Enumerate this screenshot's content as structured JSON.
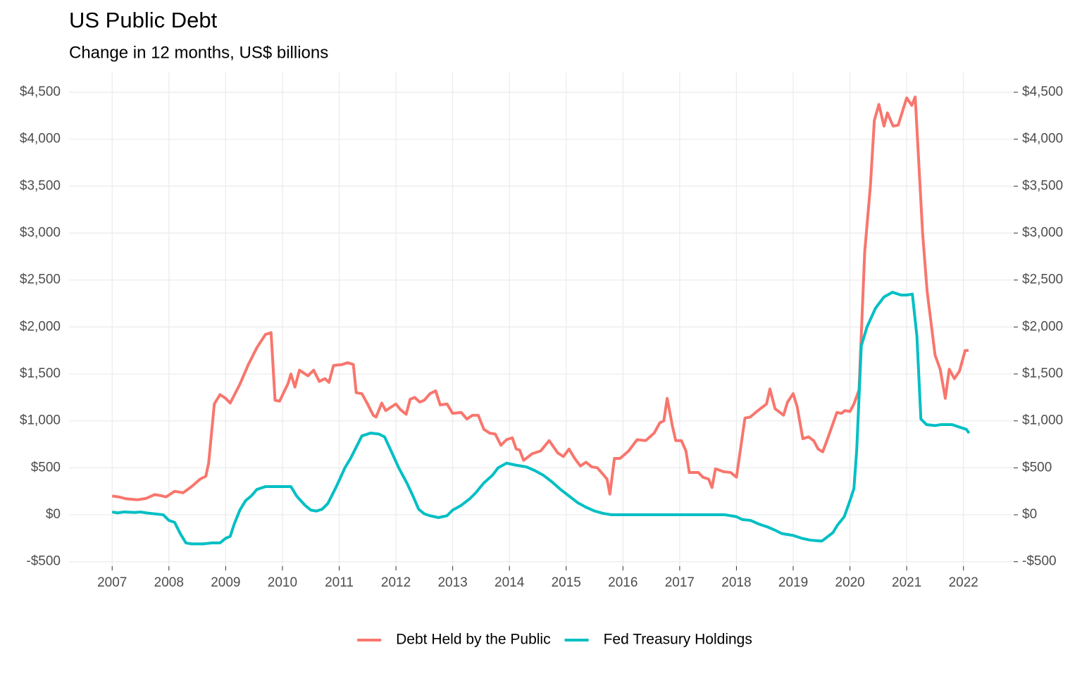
{
  "chart_data": {
    "type": "line",
    "title": "US Public Debt",
    "subtitle": "Change in 12 months, US$ billions",
    "xlim": [
      2006.24,
      2022.86
    ],
    "xticks": [
      2007,
      2008,
      2009,
      2010,
      2011,
      2012,
      2013,
      2014,
      2015,
      2016,
      2017,
      2018,
      2019,
      2020,
      2021,
      2022
    ],
    "ylim": [
      -607,
      4710
    ],
    "yticks": [
      {
        "value": -500,
        "label": "-$500"
      },
      {
        "value": 0,
        "label": "$0"
      },
      {
        "value": 500,
        "label": "$500"
      },
      {
        "value": 1000,
        "label": "$1,000"
      },
      {
        "value": 1500,
        "label": "$1,500"
      },
      {
        "value": 2000,
        "label": "$2,000"
      },
      {
        "value": 2500,
        "label": "$2,500"
      },
      {
        "value": 3000,
        "label": "$3,000"
      },
      {
        "value": 3500,
        "label": "$3,500"
      },
      {
        "value": 4000,
        "label": "$4,000"
      },
      {
        "value": 4500,
        "label": "$4,500"
      }
    ],
    "y2lim": [
      -607,
      4710
    ],
    "y2ticks": [
      {
        "value": -500,
        "label": "-$500"
      },
      {
        "value": 0,
        "label": "$0"
      },
      {
        "value": 500,
        "label": "$500"
      },
      {
        "value": 1000,
        "label": "$1,000"
      },
      {
        "value": 1500,
        "label": "$1,500"
      },
      {
        "value": 2000,
        "label": "$2,000"
      },
      {
        "value": 2500,
        "label": "$2,500"
      },
      {
        "value": 3000,
        "label": "$3,000"
      },
      {
        "value": 3500,
        "label": "$3,500"
      },
      {
        "value": 4000,
        "label": "$4,000"
      },
      {
        "value": 4500,
        "label": "$4,500"
      }
    ],
    "grid": true,
    "legend": "bottom",
    "series": [
      {
        "name": "Debt Held by the Public",
        "color": "#F8766D",
        "x": [
          2007.0,
          2007.12,
          2007.25,
          2007.45,
          2007.6,
          2007.75,
          2007.85,
          2007.95,
          2008.1,
          2008.25,
          2008.4,
          2008.55,
          2008.65,
          2008.7,
          2008.8,
          2008.9,
          2009.0,
          2009.08,
          2009.25,
          2009.4,
          2009.55,
          2009.7,
          2009.8,
          2009.87,
          2009.95,
          2010.1,
          2010.15,
          2010.22,
          2010.3,
          2010.45,
          2010.55,
          2010.65,
          2010.75,
          2010.82,
          2010.9,
          2011.05,
          2011.15,
          2011.25,
          2011.3,
          2011.4,
          2011.5,
          2011.6,
          2011.65,
          2011.75,
          2011.82,
          2012.0,
          2012.08,
          2012.18,
          2012.25,
          2012.33,
          2012.42,
          2012.5,
          2012.6,
          2012.7,
          2012.78,
          2012.9,
          2013.0,
          2013.15,
          2013.25,
          2013.35,
          2013.45,
          2013.55,
          2013.65,
          2013.75,
          2013.85,
          2013.95,
          2014.05,
          2014.12,
          2014.18,
          2014.25,
          2014.4,
          2014.55,
          2014.7,
          2014.85,
          2014.95,
          2015.05,
          2015.15,
          2015.25,
          2015.35,
          2015.45,
          2015.55,
          2015.65,
          2015.72,
          2015.77,
          2015.85,
          2015.95,
          2016.1,
          2016.25,
          2016.4,
          2016.55,
          2016.65,
          2016.72,
          2016.78,
          2016.87,
          2016.93,
          2017.03,
          2017.11,
          2017.17,
          2017.33,
          2017.41,
          2017.51,
          2017.57,
          2017.63,
          2017.77,
          2017.9,
          2018.0,
          2018.15,
          2018.24,
          2018.4,
          2018.53,
          2018.59,
          2018.68,
          2018.83,
          2018.9,
          2019.0,
          2019.07,
          2019.17,
          2019.27,
          2019.36,
          2019.44,
          2019.52,
          2019.6,
          2019.77,
          2019.85,
          2019.91,
          2020.0,
          2020.07,
          2020.16,
          2020.26,
          2020.36,
          2020.43,
          2020.51,
          2020.6,
          2020.66,
          2020.76,
          2020.85,
          2021.0,
          2021.09,
          2021.15,
          2021.28,
          2021.36,
          2021.5,
          2021.59,
          2021.68,
          2021.75,
          2021.84,
          2021.93,
          2022.03,
          2022.09
        ],
        "values": [
          200,
          190,
          170,
          160,
          175,
          215,
          205,
          190,
          250,
          235,
          300,
          380,
          410,
          550,
          1180,
          1280,
          1240,
          1190,
          1390,
          1600,
          1780,
          1920,
          1940,
          1220,
          1210,
          1400,
          1500,
          1360,
          1540,
          1480,
          1540,
          1420,
          1450,
          1410,
          1590,
          1600,
          1620,
          1600,
          1300,
          1290,
          1180,
          1060,
          1040,
          1190,
          1110,
          1180,
          1120,
          1070,
          1230,
          1250,
          1200,
          1220,
          1290,
          1320,
          1170,
          1180,
          1080,
          1090,
          1020,
          1060,
          1060,
          910,
          870,
          860,
          740,
          800,
          820,
          700,
          690,
          580,
          650,
          680,
          790,
          660,
          620,
          700,
          600,
          520,
          560,
          510,
          500,
          430,
          380,
          220,
          600,
          600,
          680,
          800,
          790,
          870,
          980,
          1000,
          1240,
          950,
          790,
          790,
          680,
          450,
          450,
          400,
          380,
          290,
          490,
          460,
          450,
          400,
          1030,
          1040,
          1120,
          1180,
          1340,
          1130,
          1060,
          1200,
          1290,
          1150,
          810,
          830,
          790,
          700,
          670,
          800,
          1090,
          1080,
          1110,
          1100,
          1180,
          1330,
          2800,
          3500,
          4200,
          4370,
          4140,
          4280,
          4140,
          4150,
          4440,
          4360,
          4450,
          3000,
          2380,
          1700,
          1550,
          1240,
          1550,
          1450,
          1530,
          1750,
          1750
        ]
      },
      {
        "name": "Fed Treasury Holdings",
        "color": "#00BFC4",
        "x": [
          2007.0,
          2007.1,
          2007.2,
          2007.4,
          2007.5,
          2007.6,
          2007.75,
          2007.9,
          2008.0,
          2008.1,
          2008.2,
          2008.3,
          2008.4,
          2008.6,
          2008.75,
          2008.9,
          2009.0,
          2009.08,
          2009.15,
          2009.25,
          2009.35,
          2009.45,
          2009.55,
          2009.7,
          2010.0,
          2010.15,
          2010.25,
          2010.4,
          2010.5,
          2010.6,
          2010.7,
          2010.8,
          2010.95,
          2011.1,
          2011.2,
          2011.3,
          2011.4,
          2011.55,
          2011.7,
          2011.8,
          2011.9,
          2012.05,
          2012.2,
          2012.3,
          2012.4,
          2012.5,
          2012.6,
          2012.75,
          2012.9,
          2013.0,
          2013.15,
          2013.3,
          2013.4,
          2013.55,
          2013.7,
          2013.8,
          2013.95,
          2014.1,
          2014.3,
          2014.45,
          2014.6,
          2014.75,
          2014.9,
          2015.05,
          2015.2,
          2015.35,
          2015.5,
          2015.65,
          2015.8,
          2017.8,
          2018.0,
          2018.1,
          2018.25,
          2018.4,
          2018.55,
          2018.7,
          2018.8,
          2019.0,
          2019.15,
          2019.3,
          2019.5,
          2019.55,
          2019.7,
          2019.78,
          2019.9,
          2020.0,
          2020.07,
          2020.12,
          2020.2,
          2020.3,
          2020.45,
          2020.6,
          2020.75,
          2020.9,
          2021.0,
          2021.1,
          2021.18,
          2021.25,
          2021.35,
          2021.5,
          2021.6,
          2021.8,
          2021.95,
          2022.05,
          2022.1
        ],
        "values": [
          30,
          20,
          30,
          25,
          30,
          20,
          10,
          0,
          -60,
          -80,
          -200,
          -300,
          -310,
          -310,
          -300,
          -300,
          -250,
          -230,
          -100,
          50,
          150,
          200,
          270,
          300,
          300,
          300,
          200,
          100,
          50,
          40,
          60,
          120,
          300,
          500,
          600,
          720,
          840,
          870,
          860,
          830,
          700,
          500,
          330,
          200,
          60,
          10,
          -10,
          -30,
          -10,
          50,
          100,
          170,
          230,
          340,
          420,
          500,
          550,
          530,
          510,
          470,
          420,
          350,
          270,
          200,
          130,
          80,
          40,
          15,
          0,
          0,
          -20,
          -50,
          -60,
          -100,
          -130,
          -170,
          -200,
          -220,
          -250,
          -270,
          -280,
          -260,
          -190,
          -110,
          -20,
          150,
          280,
          700,
          1800,
          2000,
          2200,
          2320,
          2370,
          2340,
          2340,
          2350,
          1900,
          1020,
          960,
          950,
          960,
          960,
          930,
          910,
          870
        ]
      }
    ]
  }
}
